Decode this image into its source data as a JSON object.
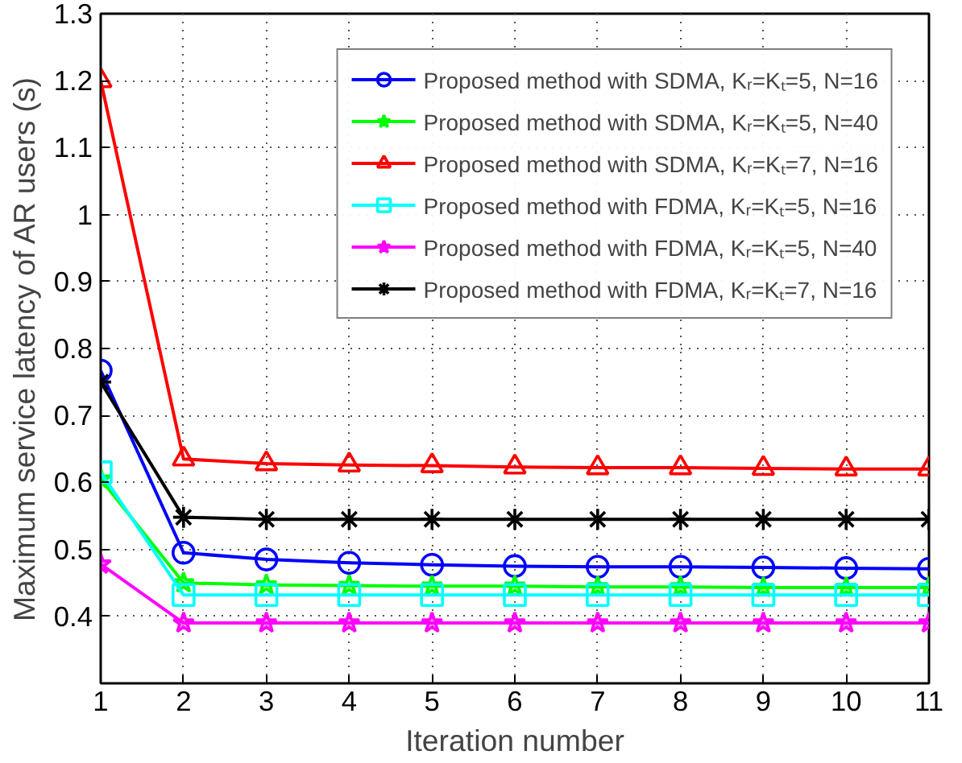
{
  "chart_data": {
    "type": "line",
    "xlabel": "Iteration number",
    "ylabel": "Maximum service latency of AR users (s)",
    "x": [
      1,
      2,
      3,
      4,
      5,
      6,
      7,
      8,
      9,
      10,
      11
    ],
    "series": [
      {
        "name": "Proposed method with SDMA, Kᵣ=Kₜ=5, N=16",
        "color": "#0000ff",
        "marker": "circle",
        "values": [
          0.767,
          0.495,
          0.485,
          0.48,
          0.477,
          0.475,
          0.474,
          0.474,
          0.473,
          0.472,
          0.471
        ]
      },
      {
        "name": "Proposed method with SDMA, Kᵣ=Kₜ=5, N=40",
        "color": "#00ff00",
        "marker": "star",
        "values": [
          0.605,
          0.45,
          0.447,
          0.446,
          0.445,
          0.445,
          0.444,
          0.444,
          0.443,
          0.443,
          0.443
        ]
      },
      {
        "name": "Proposed method with SDMA, Kᵣ=Kₜ=7, N=16",
        "color": "#ff0000",
        "marker": "triangle",
        "values": [
          1.2,
          0.635,
          0.628,
          0.626,
          0.625,
          0.623,
          0.622,
          0.622,
          0.621,
          0.62,
          0.62
        ]
      },
      {
        "name": "Proposed method with FDMA, Kᵣ=Kₜ=5, N=16",
        "color": "#00ffff",
        "marker": "square",
        "values": [
          0.615,
          0.432,
          0.432,
          0.432,
          0.432,
          0.432,
          0.432,
          0.432,
          0.432,
          0.432,
          0.432
        ]
      },
      {
        "name": "Proposed method with FDMA, Kᵣ=Kₜ=5, N=40",
        "color": "#ff00ff",
        "marker": "star",
        "values": [
          0.478,
          0.39,
          0.39,
          0.39,
          0.39,
          0.39,
          0.39,
          0.39,
          0.39,
          0.39,
          0.39
        ]
      },
      {
        "name": "Proposed method with FDMA, Kᵣ=Kₜ=7, N=16",
        "color": "#000000",
        "marker": "cross",
        "values": [
          0.75,
          0.548,
          0.545,
          0.545,
          0.545,
          0.545,
          0.545,
          0.545,
          0.545,
          0.545,
          0.545
        ]
      }
    ],
    "xlim": [
      1,
      11
    ],
    "ylim": [
      0.3,
      1.3
    ],
    "xticks": [
      1,
      2,
      3,
      4,
      5,
      6,
      7,
      8,
      9,
      10,
      11
    ],
    "yticks": [
      {
        "value": 0.3,
        "label": null
      },
      0.4,
      0.5,
      0.6,
      0.7,
      0.8,
      0.9,
      1,
      1.1,
      1.2,
      1.3
    ],
    "grid": true,
    "legend": "top right",
    "line_style": "solid"
  }
}
